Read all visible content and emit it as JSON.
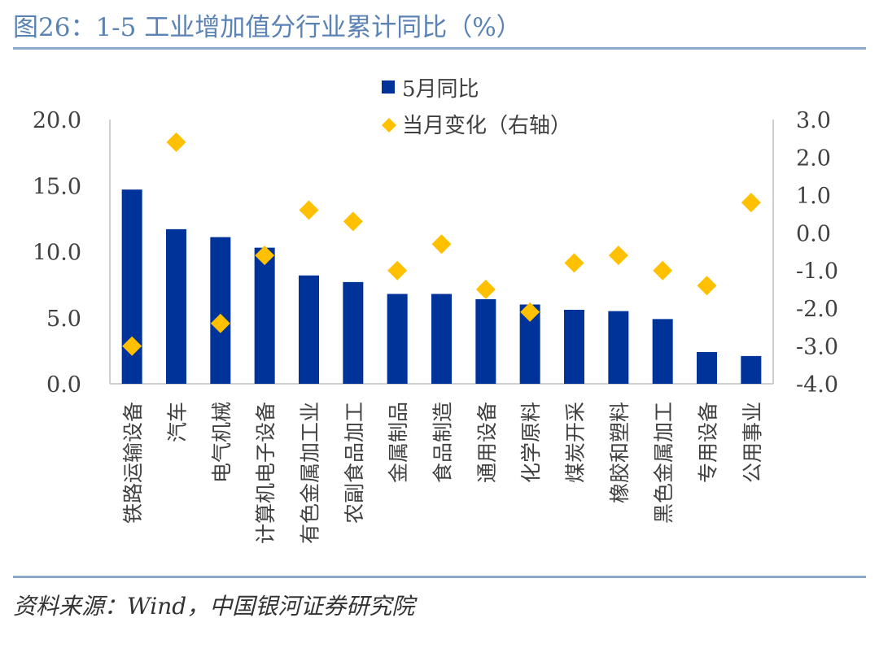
{
  "title": "图26：1-5 工业增加值分行业累计同比（%）",
  "source": "资料来源：Wind，中国银河证券研究院",
  "colors": {
    "bar": "#003399",
    "marker": "#FFC000",
    "rule": "#8AA9CC",
    "title": "#5A82B4"
  },
  "chart_data": {
    "type": "bar",
    "categories": [
      "铁路运输设备",
      "汽车",
      "电气机械",
      "计算机电子设备",
      "有色金属加工业",
      "农副食品加工",
      "金属制品",
      "食品制造",
      "通用设备",
      "化学原料",
      "煤炭开采",
      "橡胶和塑料",
      "黑色金属加工",
      "专用设备",
      "公用事业"
    ],
    "series": [
      {
        "name": "5月同比",
        "type": "bar",
        "axis": "left",
        "values": [
          14.7,
          11.7,
          11.1,
          10.3,
          8.2,
          7.7,
          6.8,
          6.8,
          6.4,
          6.0,
          5.6,
          5.5,
          4.9,
          2.4,
          2.1
        ]
      },
      {
        "name": "当月变化（右轴）",
        "type": "scatter",
        "marker": "diamond",
        "axis": "right",
        "values": [
          -3.0,
          2.4,
          -2.4,
          -0.6,
          0.6,
          0.3,
          -1.0,
          -0.3,
          -1.5,
          -2.1,
          -0.8,
          -0.6,
          -1.0,
          -1.4,
          0.8
        ]
      }
    ],
    "y_left": {
      "min": 0,
      "max": 20,
      "ticks": [
        "0.0",
        "5.0",
        "10.0",
        "15.0",
        "20.0"
      ]
    },
    "y_right": {
      "min": -4,
      "max": 3,
      "ticks": [
        "-4.0",
        "-3.0",
        "-2.0",
        "-1.0",
        "0.0",
        "1.0",
        "2.0",
        "3.0"
      ]
    },
    "legend": {
      "placement": "top-center"
    },
    "grid": false
  }
}
